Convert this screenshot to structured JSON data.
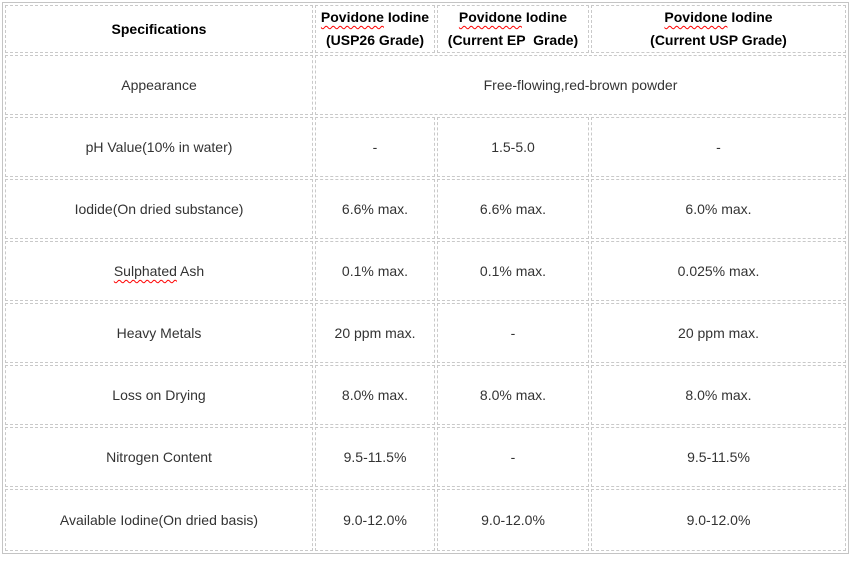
{
  "colors": {
    "background": "#ffffff",
    "border": "#c9c9c9",
    "header_text": "#000000",
    "body_text": "#333333",
    "spellcheck_underline": "#ff0000"
  },
  "table": {
    "headers": [
      {
        "title": "Specifications"
      },
      {
        "brand_wavy": "Povidone",
        "brand_rest": " Iodine",
        "grade": "(USP26 Grade)"
      },
      {
        "brand_wavy": "Povidone",
        "brand_rest": " Iodine",
        "grade": "(Current EP  Grade)"
      },
      {
        "brand_wavy": "Povidone",
        "brand_rest": " Iodine",
        "grade": "(Current USP Grade)"
      }
    ],
    "rows": [
      {
        "spec": "Appearance",
        "merged_value": "Free-flowing,red-brown powder"
      },
      {
        "spec": "pH Value(10% in water)",
        "values": [
          "-",
          "1.5-5.0",
          "-"
        ]
      },
      {
        "spec": "Iodide(On dried substance)",
        "values": [
          "6.6% max.",
          "6.6% max.",
          "6.0% max."
        ]
      },
      {
        "spec_wavy": "Sulphated",
        "spec_rest": " Ash",
        "values": [
          "0.1% max.",
          "0.1% max.",
          "0.025% max."
        ]
      },
      {
        "spec": "Heavy Metals",
        "values": [
          "20 ppm max.",
          "-",
          "20 ppm max."
        ]
      },
      {
        "spec": "Loss on Drying",
        "values": [
          "8.0% max.",
          "8.0% max.",
          "8.0% max."
        ]
      },
      {
        "spec": "Nitrogen Content",
        "values": [
          "9.5-11.5%",
          "-",
          "9.5-11.5%"
        ]
      },
      {
        "spec": "Available Iodine(On dried basis)",
        "values": [
          "9.0-12.0%",
          "9.0-12.0%",
          "9.0-12.0%"
        ]
      }
    ]
  }
}
